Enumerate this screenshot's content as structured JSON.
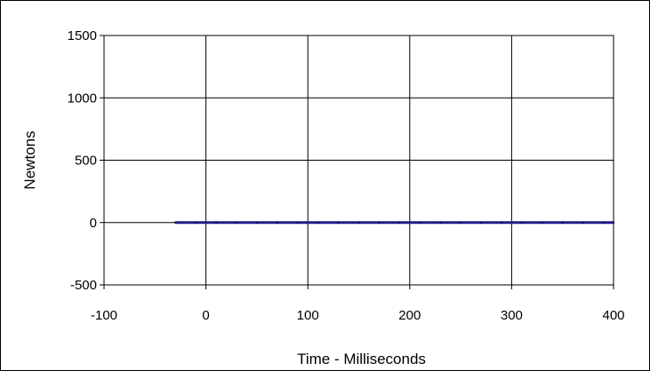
{
  "chart_data": {
    "type": "line",
    "title": "",
    "xlabel": "Time - Milliseconds",
    "ylabel": "Newtons",
    "xlim": [
      -100,
      400
    ],
    "ylim": [
      -500,
      1500
    ],
    "x_ticks": [
      -100,
      0,
      100,
      200,
      300,
      400
    ],
    "y_ticks": [
      -500,
      0,
      500,
      1000,
      1500
    ],
    "grid": true,
    "legend": "none",
    "series": [
      {
        "color": "#1f1f8c",
        "x": [
          -30,
          -10,
          10,
          30,
          50,
          70,
          90,
          110,
          130,
          150,
          170,
          190,
          210,
          230,
          250,
          270,
          290,
          310,
          330,
          350,
          370,
          390,
          400
        ],
        "y": [
          0,
          0,
          0,
          0,
          0,
          0,
          0,
          0,
          0,
          0,
          0,
          0,
          0,
          0,
          0,
          0,
          0,
          0,
          0,
          0,
          0,
          0,
          0
        ]
      }
    ]
  }
}
